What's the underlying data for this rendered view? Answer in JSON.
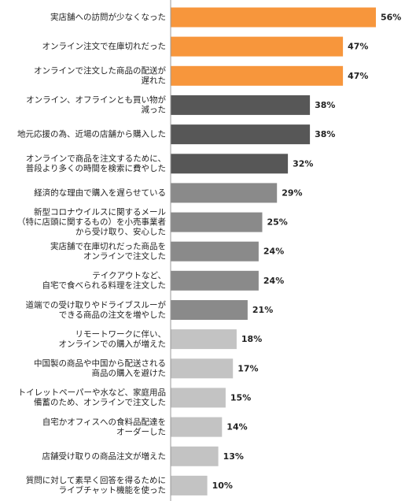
{
  "chart_data": {
    "type": "bar",
    "orientation": "horizontal",
    "grid": false,
    "xlim": [
      0,
      56
    ],
    "categories": [
      [
        "実店舗への訪問が少なくなった"
      ],
      [
        "オンライン注文で在庫切れだった"
      ],
      [
        "オンラインで注文した商品の配送が",
        "遅れた"
      ],
      [
        "オンライン、オフラインとも買い物が",
        "減った"
      ],
      [
        "地元応援の為、近場の店舗から購入した"
      ],
      [
        "オンラインで商品を注文するために、",
        "普段より多くの時間を検索に費やした"
      ],
      [
        "経済的な理由で購入を遅らせている"
      ],
      [
        "新型コロナウイルスに関するメール",
        "（特に店頭に関するもの）を小売事業者",
        "から受け取り、安心した"
      ],
      [
        "実店舗で在庫切れだった商品を",
        "オンラインで注文した"
      ],
      [
        "テイクアウトなど、",
        "自宅で食べられる料理を注文した"
      ],
      [
        "道端での受け取りやドライブスルーが",
        "できる商品の注文を増やした"
      ],
      [
        "リモートワークに伴い、",
        "オンラインでの購入が増えた"
      ],
      [
        "中国製の商品や中国から配送される",
        "商品の購入を避けた"
      ],
      [
        "トイレットペーパーや水など、家庭用品",
        "備蓄のため、オンラインで注文した"
      ],
      [
        "自宅かオフィスへの食料品配達を",
        "オーダーした"
      ],
      [
        "店舗受け取りの商品注文が増えた"
      ],
      [
        "質問に対して素早く回答を得るために",
        "ライブチャット機能を使った"
      ]
    ],
    "values": [
      56,
      47,
      47,
      38,
      38,
      32,
      29,
      25,
      24,
      24,
      21,
      18,
      17,
      15,
      14,
      13,
      10
    ],
    "value_labels": [
      "56%",
      "47%",
      "47%",
      "38%",
      "38%",
      "32%",
      "29%",
      "25%",
      "24%",
      "24%",
      "21%",
      "18%",
      "17%",
      "15%",
      "14%",
      "13%",
      "10%"
    ],
    "bar_colors": [
      "#f7963c",
      "#f7963c",
      "#f7963c",
      "#575757",
      "#575757",
      "#575757",
      "#8a8a8a",
      "#8a8a8a",
      "#8a8a8a",
      "#8a8a8a",
      "#8a8a8a",
      "#c3c3c3",
      "#c3c3c3",
      "#c3c3c3",
      "#c3c3c3",
      "#c3c3c3",
      "#c3c3c3"
    ],
    "axis_color": "#9a9a9a"
  }
}
